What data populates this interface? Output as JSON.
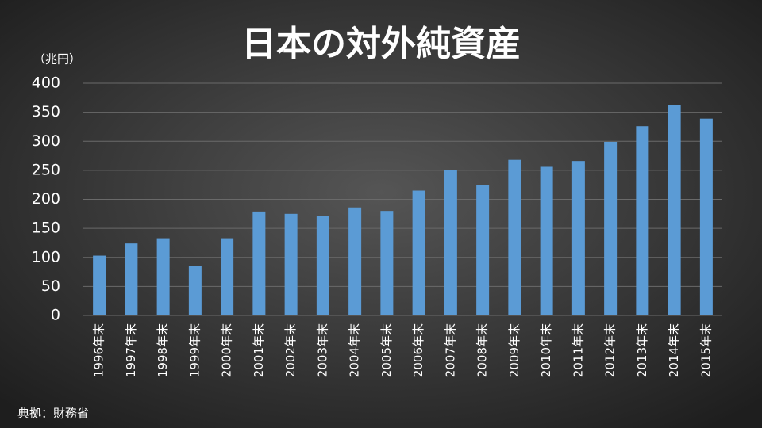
{
  "chart_data": {
    "type": "bar",
    "title": "日本の対外純資産",
    "y_label": "（兆円）",
    "source": "典拠：財務省",
    "categories": [
      "1996年末",
      "1997年末",
      "1998年末",
      "1999年末",
      "2000年末",
      "2001年末",
      "2002年末",
      "2003年末",
      "2004年末",
      "2005年末",
      "2006年末",
      "2007年末",
      "2008年末",
      "2009年末",
      "2010年末",
      "2011年末",
      "2012年末",
      "2013年末",
      "2014年末",
      "2015年末"
    ],
    "values": [
      103,
      124,
      133,
      85,
      133,
      179,
      175,
      172,
      186,
      180,
      215,
      250,
      225,
      268,
      256,
      266,
      299,
      326,
      363,
      339
    ],
    "color": "#5b9bd5",
    "ylim": [
      0,
      400
    ],
    "yticks": [
      0,
      50,
      100,
      150,
      200,
      250,
      300,
      350,
      400
    ],
    "grid": true
  }
}
